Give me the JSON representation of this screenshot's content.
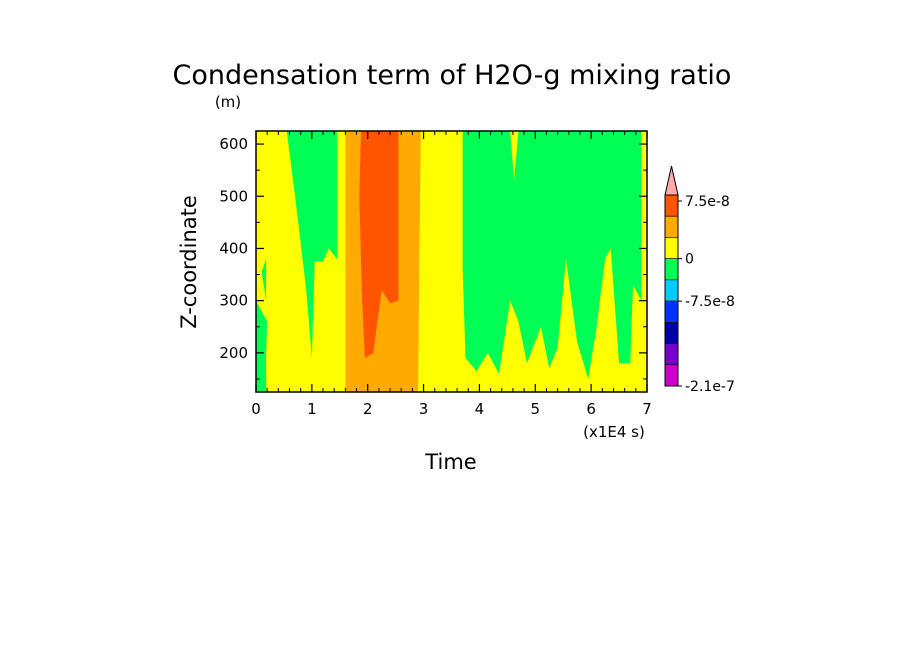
{
  "chart_data": {
    "type": "heatmap",
    "subtype": "filled-contour",
    "title": "Condensation term of H2O-g mixing ratio",
    "xlabel": "Time",
    "ylabel": "Z-coordinate",
    "x_unit_label": "(x1E4 s)",
    "y_unit_label": "(m)",
    "xlim": [
      0,
      7
    ],
    "ylim": [
      125,
      625
    ],
    "x_ticks": [
      "0",
      "1",
      "2",
      "3",
      "4",
      "5",
      "6",
      "7"
    ],
    "x_tick_values": [
      0,
      1,
      2,
      3,
      4,
      5,
      6,
      7
    ],
    "y_ticks": [
      "200",
      "300",
      "400",
      "500",
      "600"
    ],
    "y_tick_values": [
      200,
      300,
      400,
      500,
      600
    ],
    "colorbar": {
      "labels": [
        "7.5e-8",
        "0",
        "-7.5e-8",
        "-2.1e-7"
      ],
      "bands_top_to_bottom": [
        {
          "color": "#ffaaaa",
          "kind": "overflow-triangle"
        },
        {
          "color": "#ff5500"
        },
        {
          "color": "#ffaa00"
        },
        {
          "color": "#ffff00"
        },
        {
          "color": "#00ff55"
        },
        {
          "color": "#00ccff"
        },
        {
          "color": "#0033ff"
        },
        {
          "color": "#0000aa"
        },
        {
          "color": "#7700cc"
        },
        {
          "color": "#cc00cc"
        }
      ]
    },
    "regions": [
      {
        "level": "0 to 2.5e-8",
        "color": "#ffff00",
        "shape": "background"
      },
      {
        "level": "-2.5e-8 to 0",
        "color": "#00ff55",
        "points": [
          [
            0,
            125
          ],
          [
            0.18,
            125
          ],
          [
            0.18,
            200
          ],
          [
            0.2,
            260
          ],
          [
            0,
            300
          ]
        ]
      },
      {
        "level": "-2.5e-8 to 0",
        "color": "#00ff55",
        "points": [
          [
            0.1,
            355
          ],
          [
            0.18,
            300
          ],
          [
            0.18,
            380
          ]
        ]
      },
      {
        "level": "-2.5e-8 to 0",
        "color": "#00ff55",
        "points": [
          [
            0.55,
            625
          ],
          [
            1.45,
            625
          ],
          [
            1.45,
            380
          ],
          [
            1.3,
            400
          ],
          [
            1.2,
            375
          ],
          [
            1.05,
            375
          ],
          [
            1.0,
            190
          ],
          [
            0.9,
            320
          ],
          [
            0.7,
            500
          ]
        ]
      },
      {
        "level": "-2.5e-8 to 0",
        "color": "#00ff55",
        "points": [
          [
            3.7,
            625
          ],
          [
            4.55,
            625
          ],
          [
            4.62,
            530
          ],
          [
            4.7,
            625
          ],
          [
            6.9,
            625
          ],
          [
            6.9,
            300
          ],
          [
            6.75,
            330
          ],
          [
            6.7,
            180
          ],
          [
            6.5,
            180
          ],
          [
            6.35,
            400
          ],
          [
            6.25,
            380
          ],
          [
            6.1,
            250
          ],
          [
            5.95,
            150
          ],
          [
            5.75,
            220
          ],
          [
            5.55,
            380
          ],
          [
            5.4,
            210
          ],
          [
            5.25,
            170
          ],
          [
            5.1,
            250
          ],
          [
            4.85,
            180
          ],
          [
            4.7,
            260
          ],
          [
            4.55,
            300
          ],
          [
            4.35,
            160
          ],
          [
            4.15,
            200
          ],
          [
            3.95,
            165
          ],
          [
            3.75,
            190
          ],
          [
            3.7,
            360
          ]
        ]
      },
      {
        "level": "2.5e-8 to 5e-8",
        "color": "#ffaa00",
        "points": [
          [
            1.6,
            125
          ],
          [
            1.6,
            625
          ],
          [
            2.5,
            625
          ],
          [
            2.5,
            625
          ],
          [
            2.95,
            625
          ],
          [
            2.9,
            125
          ]
        ]
      },
      {
        "level": "5e-8 to 7.5e-8",
        "color": "#ff5500",
        "points": [
          [
            1.88,
            625
          ],
          [
            2.55,
            625
          ],
          [
            2.55,
            300
          ],
          [
            2.4,
            295
          ],
          [
            2.25,
            320
          ],
          [
            2.1,
            200
          ],
          [
            1.95,
            190
          ],
          [
            1.9,
            300
          ],
          [
            1.85,
            500
          ]
        ]
      }
    ],
    "grid": false,
    "legend": "colorbar-right"
  }
}
